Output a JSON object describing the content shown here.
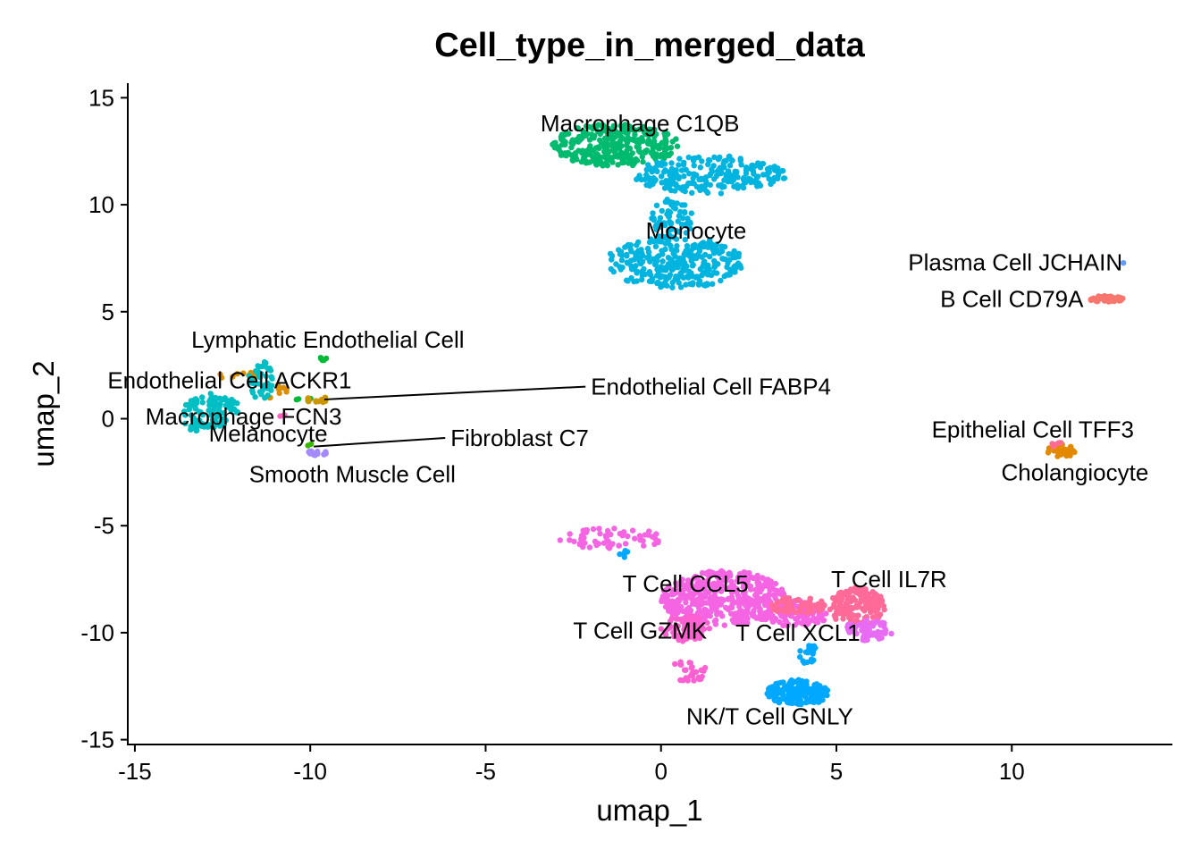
{
  "chart_data": {
    "type": "scatter",
    "title": "Cell_type_in_merged_data",
    "xlabel": "umap_1",
    "ylabel": "umap_2",
    "xlim": [
      -15.1,
      14.4
    ],
    "ylim": [
      -15.1,
      15.6
    ],
    "grid": false,
    "legend": "none",
    "x_ticks": [
      -15,
      -10,
      -5,
      0,
      5,
      10
    ],
    "y_ticks": [
      15,
      10,
      5,
      0,
      -5,
      -10,
      -15
    ],
    "x_tick_labels": [
      "-15",
      "-10",
      "-5",
      "0",
      "5",
      "10"
    ],
    "y_tick_labels": [
      "15",
      "10",
      "5",
      "0",
      "-5",
      "-10",
      "-15"
    ],
    "clusters": [
      {
        "label": "Macrophage C1QB",
        "color": "#00BB6F",
        "label_x": -0.6,
        "label_y": 13.8,
        "regions": [
          {
            "cx": -1.3,
            "cy": 12.8,
            "rx": 1.8,
            "ry": 1.0,
            "n": 320
          }
        ]
      },
      {
        "label": "Monocyte",
        "color": "#00B4E0",
        "label_x": 1.0,
        "label_y": 8.8,
        "regions": [
          {
            "cx": 1.4,
            "cy": 11.4,
            "rx": 2.2,
            "ry": 0.9,
            "n": 220
          },
          {
            "cx": 0.4,
            "cy": 7.3,
            "rx": 2.0,
            "ry": 1.2,
            "n": 300
          },
          {
            "cx": 0.3,
            "cy": 9.3,
            "rx": 0.6,
            "ry": 1.0,
            "n": 60
          }
        ]
      },
      {
        "label": "Plasma Cell JCHAIN",
        "color": "#619CFF",
        "label_x": 10.1,
        "label_y": 7.3,
        "regions": [
          {
            "cx": 13.2,
            "cy": 7.3,
            "rx": 0.05,
            "ry": 0.05,
            "n": 1
          }
        ]
      },
      {
        "label": "B Cell CD79A",
        "color": "#F8766D",
        "label_x": 10.0,
        "label_y": 5.6,
        "regions": [
          {
            "cx": 12.7,
            "cy": 5.6,
            "rx": 0.5,
            "ry": 0.15,
            "n": 40
          }
        ]
      },
      {
        "label": "Lymphatic Endothelial Cell",
        "color": "#00BA38",
        "label_x": -9.5,
        "label_y": 3.7,
        "regions": [
          {
            "cx": -9.6,
            "cy": 2.8,
            "rx": 0.2,
            "ry": 0.1,
            "n": 5
          },
          {
            "cx": -10.2,
            "cy": 0.9,
            "rx": 0.3,
            "ry": 0.1,
            "n": 6
          }
        ]
      },
      {
        "label": "Endothelial Cell ACKR1",
        "color": "#DB8E00",
        "label_x": -12.3,
        "label_y": 1.8,
        "regions": [
          {
            "cx": -12.0,
            "cy": 2.0,
            "rx": 0.6,
            "ry": 0.2,
            "n": 14
          },
          {
            "cx": -11.0,
            "cy": 1.2,
            "rx": 0.4,
            "ry": 0.4,
            "n": 12
          }
        ]
      },
      {
        "label": "Endothelial Cell FABP4",
        "color": "#CD9600",
        "label_x": -2.0,
        "label_y": 1.5,
        "line_to": [
          -9.6,
          0.9
        ],
        "regions": [
          {
            "cx": -9.8,
            "cy": 0.9,
            "rx": 0.35,
            "ry": 0.15,
            "n": 12
          }
        ]
      },
      {
        "label": "Macrophage FCN3",
        "color": "#00BFC4",
        "label_x": -11.9,
        "label_y": 0.1,
        "regions": [
          {
            "cx": -12.8,
            "cy": 0.4,
            "rx": 0.8,
            "ry": 0.8,
            "n": 90
          },
          {
            "cx": -11.4,
            "cy": 1.8,
            "rx": 0.35,
            "ry": 0.9,
            "n": 40
          },
          {
            "cx": -13.3,
            "cy": -0.3,
            "rx": 0.3,
            "ry": 0.3,
            "n": 20
          }
        ]
      },
      {
        "label": "Melanocyte",
        "color": "#FF61C3",
        "label_x": -11.2,
        "label_y": -0.7,
        "regions": [
          {
            "cx": -10.8,
            "cy": 0.1,
            "rx": 0.1,
            "ry": 0.1,
            "n": 3
          }
        ]
      },
      {
        "label": "Fibroblast C7",
        "color": "#39B600",
        "label_x": -6.0,
        "label_y": -0.9,
        "line_to": [
          -9.9,
          -1.3
        ],
        "regions": [
          {
            "cx": -10.0,
            "cy": -1.2,
            "rx": 0.1,
            "ry": 0.1,
            "n": 2
          }
        ]
      },
      {
        "label": "Smooth Muscle Cell",
        "color": "#A58AFF",
        "label_x": -8.8,
        "label_y": -2.6,
        "regions": [
          {
            "cx": -9.8,
            "cy": -1.6,
            "rx": 0.3,
            "ry": 0.12,
            "n": 18
          }
        ]
      },
      {
        "label": "Epithelial Cell TFF3",
        "color": "#E38900",
        "label_x": 10.6,
        "label_y": -0.5,
        "regions": [
          {
            "cx": 11.4,
            "cy": -1.5,
            "rx": 0.4,
            "ry": 0.3,
            "n": 25
          }
        ]
      },
      {
        "label": "Cholangiocyte",
        "color": "#FF6C91",
        "label_x": 11.8,
        "label_y": -2.5,
        "regions": [
          {
            "cx": 11.3,
            "cy": -1.3,
            "rx": 0.2,
            "ry": 0.2,
            "n": 6
          }
        ]
      },
      {
        "label": "T Cell CCL5",
        "color": "#F564E3",
        "label_x": 0.7,
        "label_y": -7.7,
        "regions": [
          {
            "cx": 1.8,
            "cy": -8.4,
            "rx": 1.8,
            "ry": 1.3,
            "n": 420
          },
          {
            "cx": -1.4,
            "cy": -5.6,
            "rx": 1.5,
            "ry": 0.5,
            "n": 60
          },
          {
            "cx": 3.8,
            "cy": -9.1,
            "rx": 1.0,
            "ry": 0.6,
            "n": 120
          }
        ]
      },
      {
        "label": "T Cell IL7R",
        "color": "#FF6A98",
        "label_x": 6.5,
        "label_y": -7.5,
        "regions": [
          {
            "cx": 5.6,
            "cy": -8.8,
            "rx": 0.8,
            "ry": 0.9,
            "n": 160
          },
          {
            "cx": 3.9,
            "cy": -8.7,
            "rx": 0.9,
            "ry": 0.4,
            "n": 60
          }
        ]
      },
      {
        "label": "T Cell GZMK",
        "color": "#FD61D1",
        "label_x": -0.6,
        "label_y": -9.9,
        "regions": [
          {
            "cx": 0.7,
            "cy": -9.8,
            "rx": 0.7,
            "ry": 0.6,
            "n": 80
          },
          {
            "cx": 0.8,
            "cy": -11.8,
            "rx": 0.5,
            "ry": 0.6,
            "n": 30
          }
        ]
      },
      {
        "label": "T Cell XCL1",
        "color": "#E76BF3",
        "label_x": 3.9,
        "label_y": -10.0,
        "regions": [
          {
            "cx": 5.9,
            "cy": -9.9,
            "rx": 0.7,
            "ry": 0.5,
            "n": 60
          }
        ]
      },
      {
        "label": "NK/T Cell GNLY",
        "color": "#00A9FF",
        "label_x": 3.1,
        "label_y": -13.9,
        "regions": [
          {
            "cx": 3.9,
            "cy": -12.8,
            "rx": 0.9,
            "ry": 0.6,
            "n": 180
          },
          {
            "cx": 4.2,
            "cy": -11.0,
            "rx": 0.25,
            "ry": 0.5,
            "n": 20
          },
          {
            "cx": -1.1,
            "cy": -6.2,
            "rx": 0.15,
            "ry": 0.3,
            "n": 6
          }
        ]
      }
    ]
  }
}
